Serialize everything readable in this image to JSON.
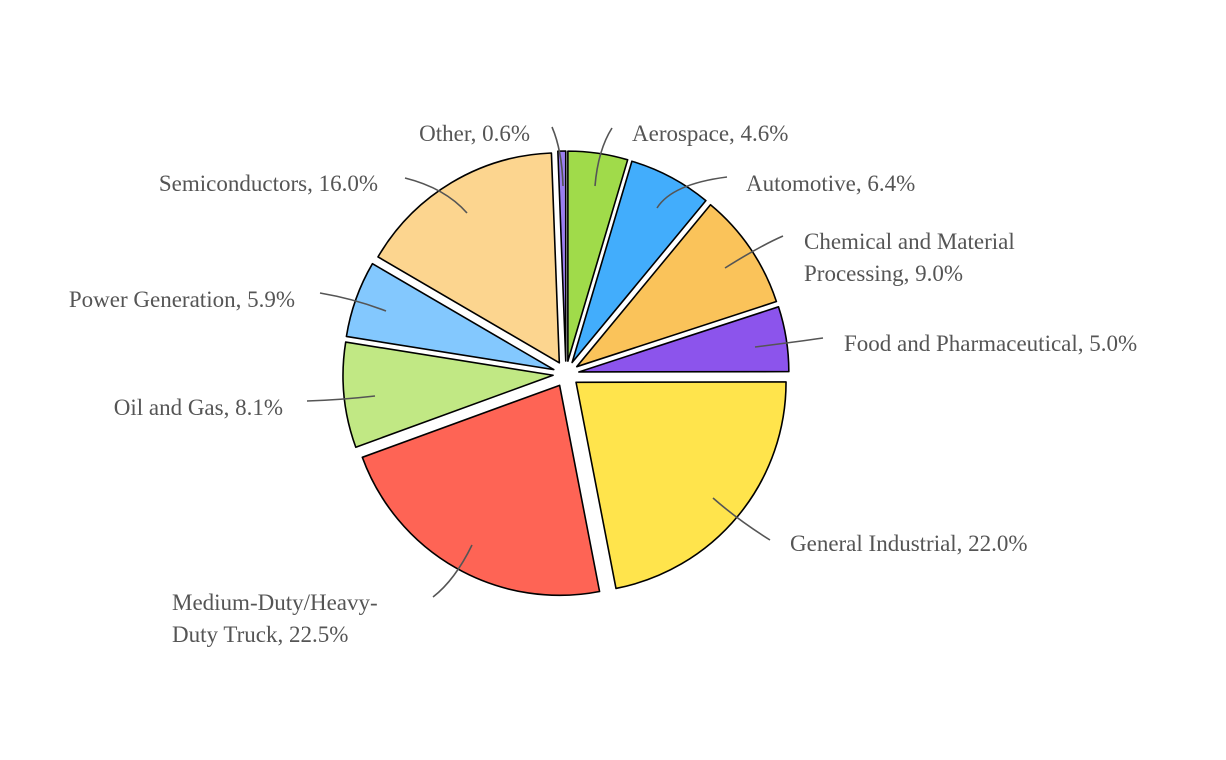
{
  "chart_data": {
    "type": "pie",
    "categories": [
      "Aerospace",
      "Automotive",
      "Chemical and Material Processing",
      "Food and Pharmaceutical",
      "General Industrial",
      "Medium-Duty/Heavy-Duty Truck",
      "Oil and Gas",
      "Power Generation",
      "Semiconductors",
      "Other"
    ],
    "values": [
      4.6,
      6.4,
      9.0,
      5.0,
      22.0,
      22.5,
      8.1,
      5.9,
      16.0,
      0.6
    ],
    "unit": "%",
    "colors": [
      "#a0db4a",
      "#42adfc",
      "#fac35a",
      "#8c54ec",
      "#ffe44c",
      "#fe6455",
      "#c1e884",
      "#83c8fe",
      "#fcd58f",
      "#9a7ef0"
    ],
    "labels": [
      [
        "Aerospace, 4.6%"
      ],
      [
        "Automotive, 6.4%"
      ],
      [
        "Chemical and Material",
        "Processing, 9.0%"
      ],
      [
        "Food and Pharmaceutical, 5.0%"
      ],
      [
        "General Industrial, 22.0%"
      ],
      [
        "Medium-Duty/Heavy-",
        "Duty Truck, 22.5%"
      ],
      [
        "Oil and Gas, 8.1%"
      ],
      [
        "Power Generation, 5.9%"
      ],
      [
        "Semiconductors, 16.0%"
      ],
      [
        "Other, 0.6%"
      ]
    ],
    "exploded": true,
    "legend": "none"
  }
}
